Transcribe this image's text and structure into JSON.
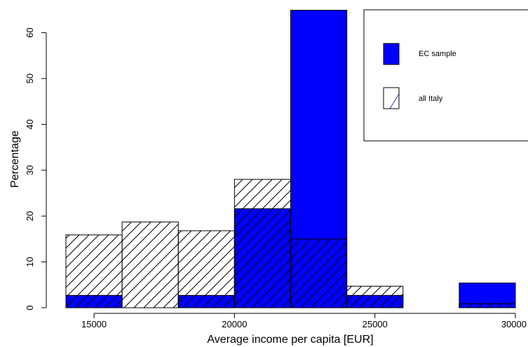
{
  "chart_data": {
    "type": "bar",
    "title": "",
    "xlabel": "Average income per capita [EUR]",
    "ylabel": "Percentage",
    "bin_width": 2000,
    "bins": [
      14000,
      16000,
      18000,
      20000,
      22000,
      24000,
      26000,
      28000
    ],
    "series": [
      {
        "name": "EC sample",
        "style": "solid",
        "color": "#0000ff",
        "values": [
          2.7,
          0,
          2.7,
          21.6,
          64.9,
          2.7,
          0,
          5.4
        ]
      },
      {
        "name": "all Italy",
        "style": "hatched",
        "color": "#000000",
        "values": [
          15.9,
          18.7,
          16.8,
          28.0,
          15.0,
          4.7,
          0,
          0.9
        ]
      }
    ],
    "x_ticks": [
      {
        "value": 15000,
        "label": "15000"
      },
      {
        "value": 20000,
        "label": "20000"
      },
      {
        "value": 25000,
        "label": "25000"
      },
      {
        "value": 30000,
        "label": "30000"
      }
    ],
    "y_ticks": [
      {
        "value": 0,
        "label": "0"
      },
      {
        "value": 10,
        "label": "10"
      },
      {
        "value": 20,
        "label": "20"
      },
      {
        "value": 30,
        "label": "30"
      },
      {
        "value": 40,
        "label": "40"
      },
      {
        "value": 50,
        "label": "50"
      },
      {
        "value": 60,
        "label": "60"
      }
    ],
    "xlim": [
      14000,
      30000
    ],
    "ylim": [
      0,
      65
    ],
    "grid": false,
    "legend_position": "top-right",
    "colors": {
      "accent": "#0000ff",
      "hatch": "#000000",
      "legend_hatch": "#3333cc"
    }
  }
}
